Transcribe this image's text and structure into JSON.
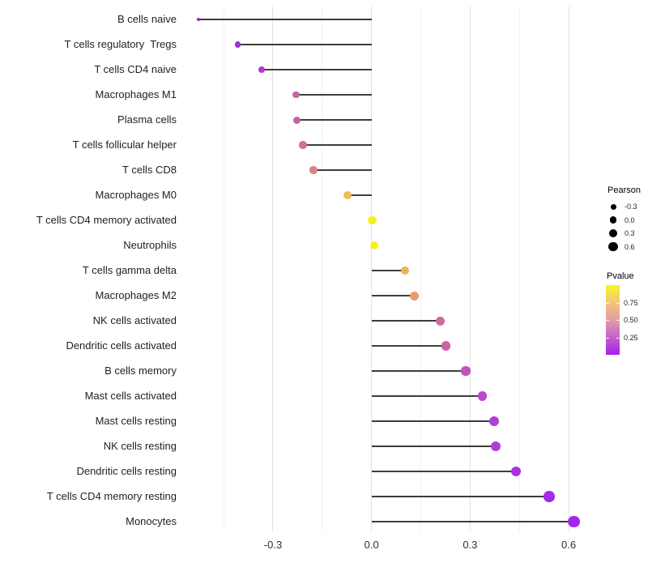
{
  "chart_data": {
    "type": "lollipop",
    "title": "",
    "xlabel": "",
    "ylabel": "",
    "orientation": "horizontal",
    "grid": "vertical-major-and-minor",
    "legend_position": "right",
    "xlim": [
      -0.5835,
      0.6615
    ],
    "x_major_ticks": [
      -0.3,
      0.0,
      0.3,
      0.6
    ],
    "x_major_tick_labels": [
      "-0.3",
      "0.0",
      "0.3",
      "0.6"
    ],
    "x_minor_ticks": [
      -0.45,
      -0.15,
      0.15,
      0.45
    ],
    "stem_color": "#3d3d3d",
    "rows": [
      {
        "label": "B cells naive",
        "pearson": -0.527,
        "pvalue": 0.01,
        "color": "#9326DB",
        "diameter": 4.5
      },
      {
        "label": "T cells regulatory  Tregs",
        "pearson": -0.407,
        "pvalue": 0.05,
        "color": "#A431D7",
        "diameter": 7.5
      },
      {
        "label": "T cells CD4 naive",
        "pearson": -0.335,
        "pvalue": 0.11,
        "color": "#AF39D2",
        "diameter": 8.0
      },
      {
        "label": "Macrophages M1",
        "pearson": -0.23,
        "pvalue": 0.3,
        "color": "#C566A2",
        "diameter": 8.7
      },
      {
        "label": "Plasma cells",
        "pearson": -0.227,
        "pvalue": 0.3,
        "color": "#C463A3",
        "diameter": 9.0
      },
      {
        "label": "T cells follicular helper",
        "pearson": -0.209,
        "pvalue": 0.34,
        "color": "#CE6F9F",
        "diameter": 9.3
      },
      {
        "label": "T cells CD8",
        "pearson": -0.177,
        "pvalue": 0.43,
        "color": "#D98288",
        "diameter": 9.3
      },
      {
        "label": "Macrophages M0",
        "pearson": -0.073,
        "pvalue": 0.77,
        "color": "#F2BC58",
        "diameter": 10.0
      },
      {
        "label": "T cells CD4 memory activated",
        "pearson": 0.002,
        "pvalue": 0.97,
        "color": "#F8F01E",
        "diameter": 10.5
      },
      {
        "label": "Neutrophils",
        "pearson": 0.008,
        "pvalue": 0.95,
        "color": "#F8EE20",
        "diameter": 10.2
      },
      {
        "label": "T cells gamma delta",
        "pearson": 0.102,
        "pvalue": 0.71,
        "color": "#EDB25C",
        "diameter": 10.3
      },
      {
        "label": "Macrophages M2",
        "pearson": 0.129,
        "pvalue": 0.61,
        "color": "#E99C68",
        "diameter": 11.0
      },
      {
        "label": "NK cells activated",
        "pearson": 0.208,
        "pvalue": 0.32,
        "color": "#CE699D",
        "diameter": 11.0
      },
      {
        "label": "Dendritic cells activated",
        "pearson": 0.226,
        "pvalue": 0.28,
        "color": "#CC61A7",
        "diameter": 11.7
      },
      {
        "label": "B cells memory",
        "pearson": 0.287,
        "pvalue": 0.2,
        "color": "#C451BE",
        "diameter": 11.3
      },
      {
        "label": "Mast cells activated",
        "pearson": 0.337,
        "pvalue": 0.15,
        "color": "#BD47CC",
        "diameter": 11.3
      },
      {
        "label": "Mast cells resting",
        "pearson": 0.372,
        "pvalue": 0.1,
        "color": "#B43DD6",
        "diameter": 12.0
      },
      {
        "label": "NK cells resting",
        "pearson": 0.379,
        "pvalue": 0.1,
        "color": "#B33BD7",
        "diameter": 12.0
      },
      {
        "label": "Dendritic cells resting",
        "pearson": 0.44,
        "pvalue": 0.06,
        "color": "#AB31E0",
        "diameter": 12.7
      },
      {
        "label": "T cells CD4 memory resting",
        "pearson": 0.541,
        "pvalue": 0.03,
        "color": "#A52BE8",
        "diameter": 13.3
      },
      {
        "label": "Monocytes",
        "pearson": 0.616,
        "pvalue": 0.02,
        "color": "#A228EC",
        "diameter": 14.7
      }
    ],
    "legend": {
      "size": {
        "title": "Pearson",
        "dot_color": "#000000",
        "entries": [
          {
            "label": "-0.3",
            "diameter": 7.0
          },
          {
            "label": "0.0",
            "diameter": 8.7
          },
          {
            "label": "0.3",
            "diameter": 10.3
          },
          {
            "label": "0.6",
            "diameter": 11.7
          }
        ]
      },
      "color": {
        "title": "Pvalue",
        "range": [
          0,
          1
        ],
        "tick_labels": [
          "0.75",
          "0.50",
          "0.25"
        ],
        "tick_values": [
          0.75,
          0.5,
          0.25
        ],
        "gradient_top_to_bottom": [
          {
            "value": 1.0,
            "color": "#FAF622"
          },
          {
            "value": 0.75,
            "color": "#F2C57B"
          },
          {
            "value": 0.5,
            "color": "#E39DA6"
          },
          {
            "value": 0.25,
            "color": "#C75FCB"
          },
          {
            "value": 0.0,
            "color": "#A41FF2"
          }
        ]
      }
    }
  }
}
